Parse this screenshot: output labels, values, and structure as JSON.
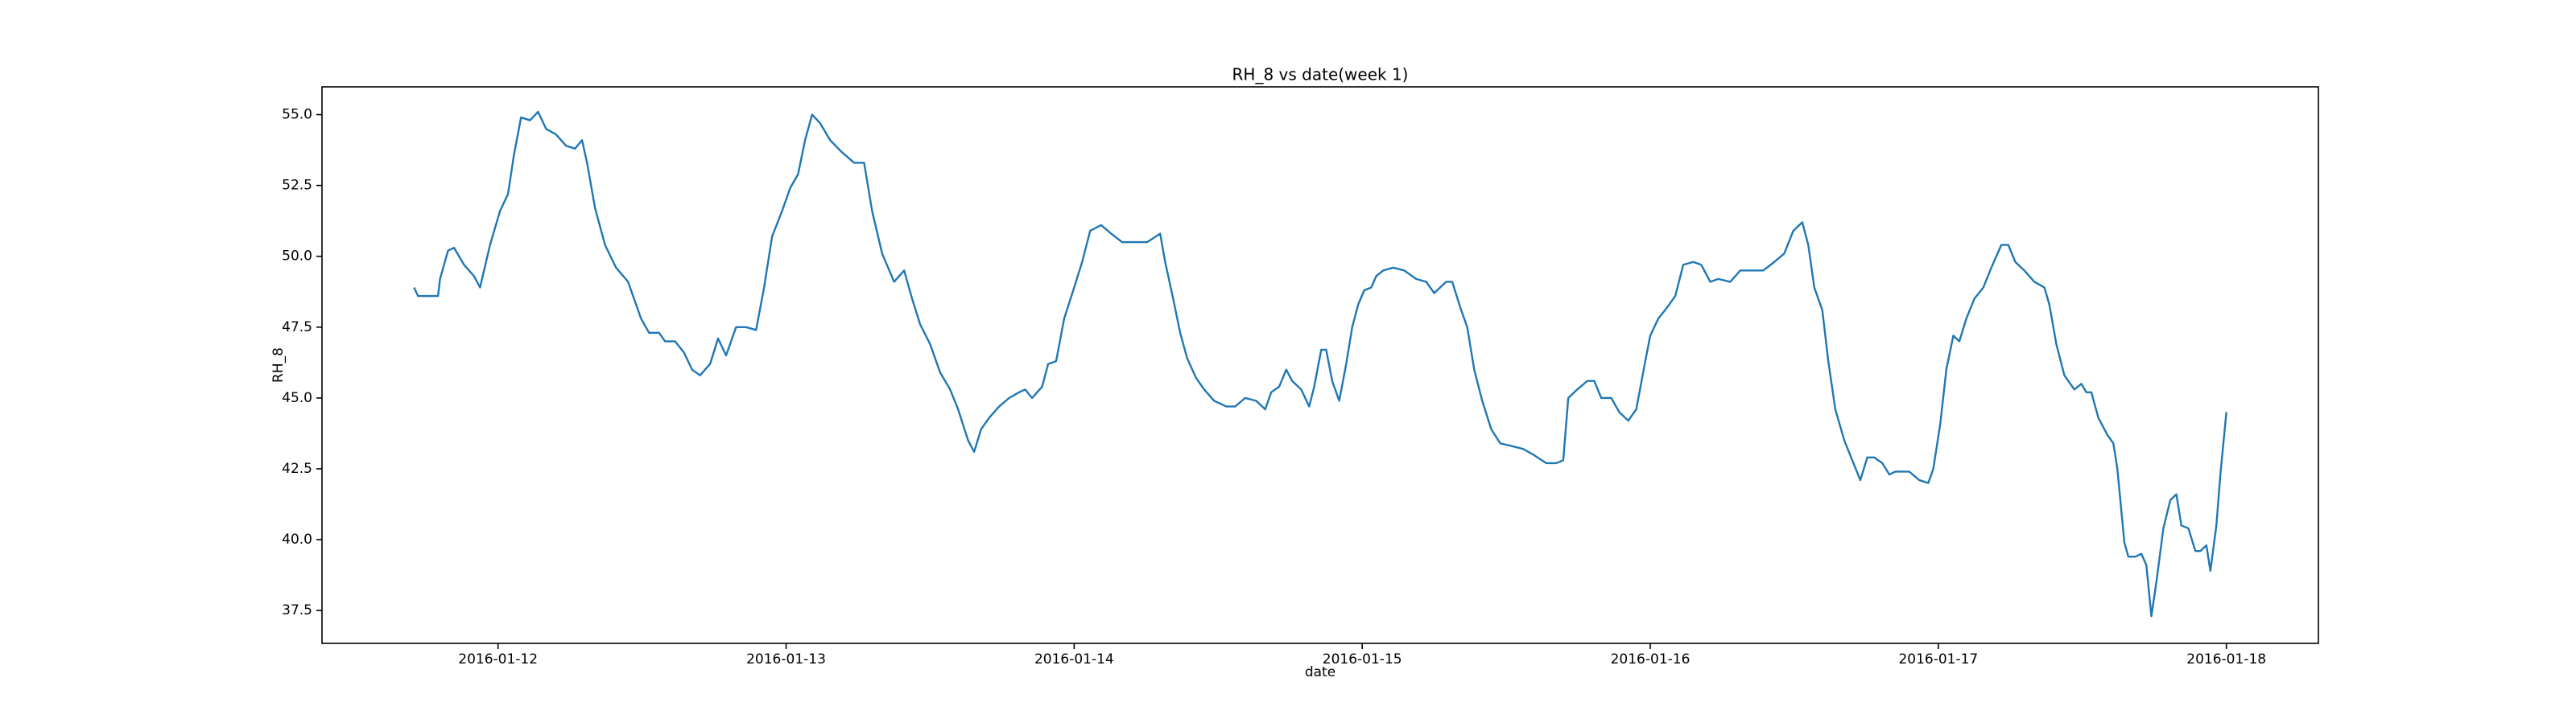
{
  "chart_data": {
    "type": "line",
    "title": "RH_8 vs date(week 1)",
    "x_label": "date",
    "y_label": "RH_8",
    "color": "#1f77b4",
    "xlim": [
      "2016-01-11T09:20",
      "2016-01-18T07:40"
    ],
    "xticks": [
      "2016-01-12",
      "2016-01-13",
      "2016-01-14",
      "2016-01-15",
      "2016-01-16",
      "2016-01-17",
      "2016-01-18"
    ],
    "ylim": [
      36.34,
      55.98
    ],
    "yticks": [
      37.5,
      {
        "value": 40,
        "label": "40.0"
      },
      42.5,
      {
        "value": 45,
        "label": "45.0"
      },
      47.5,
      {
        "value": 50,
        "label": "50.0"
      },
      52.5,
      {
        "value": 55,
        "label": "55.0"
      }
    ],
    "x": [
      "2016-01-11T17:00",
      "2016-01-11T17:20",
      "2016-01-11T19:00",
      "2016-01-11T19:10",
      "2016-01-11T19:50",
      "2016-01-11T20:20",
      "2016-01-11T21:10",
      "2016-01-11T22:00",
      "2016-01-11T22:30",
      "2016-01-11T23:20",
      "2016-01-12T00:10",
      "2016-01-12T00:50",
      "2016-01-12T01:20",
      "2016-01-12T01:55",
      "2016-01-12T02:40",
      "2016-01-12T03:20",
      "2016-01-12T04:00",
      "2016-01-12T04:50",
      "2016-01-12T05:40",
      "2016-01-12T06:25",
      "2016-01-12T07:00",
      "2016-01-12T07:25",
      "2016-01-12T08:05",
      "2016-01-12T08:55",
      "2016-01-12T09:50",
      "2016-01-12T10:50",
      "2016-01-12T11:20",
      "2016-01-12T11:55",
      "2016-01-12T12:35",
      "2016-01-12T13:25",
      "2016-01-12T13:55",
      "2016-01-12T14:45",
      "2016-01-12T15:30",
      "2016-01-12T16:10",
      "2016-01-12T16:50",
      "2016-01-12T17:40",
      "2016-01-12T18:20",
      "2016-01-12T19:00",
      "2016-01-12T19:50",
      "2016-01-12T20:40",
      "2016-01-12T21:30",
      "2016-01-12T22:10",
      "2016-01-12T22:50",
      "2016-01-12T23:40",
      "2016-01-13T00:20",
      "2016-01-13T01:00",
      "2016-01-13T01:35",
      "2016-01-13T02:10",
      "2016-01-13T02:50",
      "2016-01-13T03:40",
      "2016-01-13T04:35",
      "2016-01-13T05:40",
      "2016-01-13T06:30",
      "2016-01-13T07:10",
      "2016-01-13T08:00",
      "2016-01-13T09:00",
      "2016-01-13T09:50",
      "2016-01-13T10:30",
      "2016-01-13T11:10",
      "2016-01-13T12:00",
      "2016-01-13T12:50",
      "2016-01-13T13:40",
      "2016-01-13T14:20",
      "2016-01-13T15:10",
      "2016-01-13T15:40",
      "2016-01-13T16:15",
      "2016-01-13T16:55",
      "2016-01-13T17:45",
      "2016-01-13T18:35",
      "2016-01-13T19:25",
      "2016-01-13T19:55",
      "2016-01-13T20:30",
      "2016-01-13T21:20",
      "2016-01-13T21:50",
      "2016-01-13T22:30",
      "2016-01-13T23:10",
      "2016-01-14T00:00",
      "2016-01-14T00:40",
      "2016-01-14T01:20",
      "2016-01-14T02:15",
      "2016-01-14T03:05",
      "2016-01-14T04:00",
      "2016-01-14T05:00",
      "2016-01-14T06:05",
      "2016-01-14T07:10",
      "2016-01-14T07:35",
      "2016-01-14T08:15",
      "2016-01-14T08:50",
      "2016-01-14T09:25",
      "2016-01-14T10:10",
      "2016-01-14T10:50",
      "2016-01-14T11:40",
      "2016-01-14T12:40",
      "2016-01-14T13:25",
      "2016-01-14T14:15",
      "2016-01-14T15:10",
      "2016-01-14T15:55",
      "2016-01-14T16:25",
      "2016-01-14T17:05",
      "2016-01-14T17:40",
      "2016-01-14T18:10",
      "2016-01-14T18:55",
      "2016-01-14T19:35",
      "2016-01-14T20:00",
      "2016-01-14T20:35",
      "2016-01-14T21:00",
      "2016-01-14T21:30",
      "2016-01-14T22:05",
      "2016-01-14T22:40",
      "2016-01-14T23:10",
      "2016-01-14T23:40",
      "2016-01-15T00:10",
      "2016-01-15T00:45",
      "2016-01-15T01:10",
      "2016-01-15T01:45",
      "2016-01-15T02:35",
      "2016-01-15T03:30",
      "2016-01-15T04:30",
      "2016-01-15T05:20",
      "2016-01-15T06:00",
      "2016-01-15T07:00",
      "2016-01-15T07:30",
      "2016-01-15T08:10",
      "2016-01-15T08:45",
      "2016-01-15T09:20",
      "2016-01-15T10:00",
      "2016-01-15T10:45",
      "2016-01-15T11:30",
      "2016-01-15T12:30",
      "2016-01-15T13:25",
      "2016-01-15T14:15",
      "2016-01-15T15:20",
      "2016-01-15T16:10",
      "2016-01-15T16:45",
      "2016-01-15T17:10",
      "2016-01-15T17:55",
      "2016-01-15T18:45",
      "2016-01-15T19:20",
      "2016-01-15T19:55",
      "2016-01-15T20:45",
      "2016-01-15T21:25",
      "2016-01-15T22:10",
      "2016-01-15T22:50",
      "2016-01-15T23:35",
      "2016-01-16T00:00",
      "2016-01-16T00:40",
      "2016-01-16T01:25",
      "2016-01-16T02:05",
      "2016-01-16T02:45",
      "2016-01-16T03:35",
      "2016-01-16T04:15",
      "2016-01-16T05:00",
      "2016-01-16T05:40",
      "2016-01-16T06:40",
      "2016-01-16T07:30",
      "2016-01-16T08:25",
      "2016-01-16T09:25",
      "2016-01-16T10:20",
      "2016-01-16T11:10",
      "2016-01-16T11:55",
      "2016-01-16T12:40",
      "2016-01-16T13:10",
      "2016-01-16T13:40",
      "2016-01-16T14:20",
      "2016-01-16T14:50",
      "2016-01-16T15:25",
      "2016-01-16T16:10",
      "2016-01-16T16:50",
      "2016-01-16T17:30",
      "2016-01-16T18:05",
      "2016-01-16T18:40",
      "2016-01-16T19:20",
      "2016-01-16T19:55",
      "2016-01-16T20:25",
      "2016-01-16T21:35",
      "2016-01-16T22:25",
      "2016-01-16T23:10",
      "2016-01-16T23:35",
      "2016-01-17T00:10",
      "2016-01-17T00:40",
      "2016-01-17T01:15",
      "2016-01-17T01:45",
      "2016-01-17T02:20",
      "2016-01-17T03:00",
      "2016-01-17T03:45",
      "2016-01-17T04:25",
      "2016-01-17T05:15",
      "2016-01-17T05:50",
      "2016-01-17T06:25",
      "2016-01-17T07:10",
      "2016-01-17T08:00",
      "2016-01-17T08:50",
      "2016-01-17T09:15",
      "2016-01-17T09:50",
      "2016-01-17T10:30",
      "2016-01-17T11:20",
      "2016-01-17T11:55",
      "2016-01-17T12:20",
      "2016-01-17T12:45",
      "2016-01-17T13:20",
      "2016-01-17T14:05",
      "2016-01-17T14:35",
      "2016-01-17T14:55",
      "2016-01-17T15:30",
      "2016-01-17T15:50",
      "2016-01-17T16:25",
      "2016-01-17T16:55",
      "2016-01-17T17:20",
      "2016-01-17T17:45",
      "2016-01-17T18:10",
      "2016-01-17T18:45",
      "2016-01-17T19:20",
      "2016-01-17T19:50",
      "2016-01-17T20:15",
      "2016-01-17T20:50",
      "2016-01-17T21:25",
      "2016-01-17T21:50",
      "2016-01-17T22:20",
      "2016-01-17T22:40",
      "2016-01-17T23:10",
      "2016-01-17T23:30",
      "2016-01-17T23:45",
      "2016-01-18T00:00"
    ],
    "values": [
      48.9,
      48.6,
      48.6,
      49.2,
      50.2,
      50.3,
      49.7,
      49.3,
      48.9,
      50.4,
      51.6,
      52.2,
      53.6,
      54.9,
      54.8,
      55.1,
      54.5,
      54.3,
      53.9,
      53.8,
      54.1,
      53.3,
      51.7,
      50.4,
      49.6,
      49.1,
      48.5,
      47.8,
      47.3,
      47.3,
      47.0,
      47.0,
      46.6,
      46.0,
      45.8,
      46.2,
      47.1,
      46.5,
      47.5,
      47.5,
      47.4,
      48.9,
      50.7,
      51.6,
      52.4,
      52.9,
      54.1,
      55.0,
      54.7,
      54.1,
      53.7,
      53.3,
      53.3,
      51.6,
      50.1,
      49.1,
      49.5,
      48.5,
      47.6,
      46.9,
      45.9,
      45.3,
      44.6,
      43.5,
      43.1,
      43.9,
      44.3,
      44.7,
      45.0,
      45.2,
      45.3,
      45.0,
      45.4,
      46.2,
      46.3,
      47.8,
      48.9,
      49.8,
      50.9,
      51.1,
      50.8,
      50.5,
      50.5,
      50.5,
      50.8,
      49.8,
      48.5,
      47.3,
      46.4,
      45.7,
      45.3,
      44.9,
      44.7,
      44.7,
      45.0,
      44.9,
      44.6,
      45.2,
      45.4,
      46.0,
      45.6,
      45.3,
      44.7,
      45.4,
      46.7,
      46.7,
      45.6,
      44.9,
      46.2,
      47.5,
      48.3,
      48.8,
      48.9,
      49.3,
      49.5,
      49.6,
      49.5,
      49.2,
      49.1,
      48.7,
      49.1,
      49.1,
      48.2,
      47.5,
      46.0,
      44.9,
      43.9,
      43.4,
      43.3,
      43.2,
      43.0,
      42.7,
      42.7,
      42.8,
      45.0,
      45.3,
      45.6,
      45.6,
      45.0,
      45.0,
      44.5,
      44.2,
      44.6,
      46.3,
      47.2,
      47.8,
      48.2,
      48.6,
      49.7,
      49.8,
      49.7,
      49.1,
      49.2,
      49.1,
      49.5,
      49.5,
      49.5,
      49.8,
      50.1,
      50.9,
      51.2,
      50.4,
      48.9,
      48.1,
      46.3,
      44.6,
      43.5,
      42.8,
      42.1,
      42.9,
      42.9,
      42.7,
      42.3,
      42.4,
      42.4,
      42.1,
      42.0,
      42.5,
      44.1,
      46.0,
      47.2,
      47.0,
      47.8,
      48.5,
      48.9,
      49.6,
      50.4,
      50.4,
      49.8,
      49.5,
      49.1,
      48.9,
      48.3,
      46.9,
      45.8,
      45.3,
      45.5,
      45.2,
      45.2,
      44.3,
      43.7,
      43.4,
      42.5,
      39.9,
      39.4,
      39.4,
      39.5,
      39.1,
      37.3,
      38.5,
      40.4,
      41.4,
      41.6,
      40.5,
      40.4,
      39.6,
      39.6,
      39.8,
      38.9,
      40.5,
      42.3,
      43.4,
      44.5
    ]
  }
}
